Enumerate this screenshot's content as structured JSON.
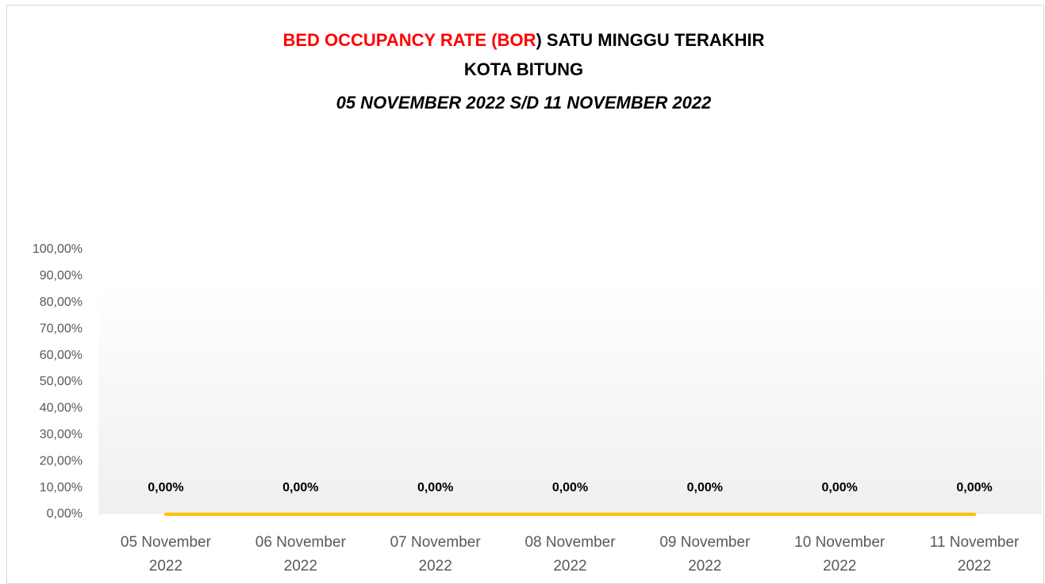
{
  "chart_data": {
    "type": "line",
    "title": {
      "highlight": "BED OCCUPANCY RATE (BOR",
      "rest": ") SATU MINGGU TERAKHIR",
      "highlight_color": "#ff0000"
    },
    "subtitle": "KOTA BITUNG",
    "period": "05 NOVEMBER 2022 S/D 11 NOVEMBER 2022",
    "categories": [
      "05 November 2022",
      "06 November 2022",
      "07 November 2022",
      "08 November 2022",
      "09 November 2022",
      "10 November 2022",
      "11 November 2022"
    ],
    "series": [
      {
        "name": "BOR",
        "color": "#ffc000",
        "values": [
          0,
          0,
          0,
          0,
          0,
          0,
          0
        ],
        "value_labels": [
          "0,00%",
          "0,00%",
          "0,00%",
          "0,00%",
          "0,00%",
          "0,00%",
          "0,00%"
        ]
      }
    ],
    "ylim": [
      0,
      100
    ],
    "yticks": [
      {
        "value": 0,
        "label": "0,00%"
      },
      {
        "value": 10,
        "label": "10,00%"
      },
      {
        "value": 20,
        "label": "20,00%"
      },
      {
        "value": 30,
        "label": "30,00%"
      },
      {
        "value": 40,
        "label": "40,00%"
      },
      {
        "value": 50,
        "label": "50,00%"
      },
      {
        "value": 60,
        "label": "60,00%"
      },
      {
        "value": 70,
        "label": "70,00%"
      },
      {
        "value": 80,
        "label": "80,00%"
      },
      {
        "value": 90,
        "label": "90,00%"
      },
      {
        "value": 100,
        "label": "100,00%"
      }
    ]
  }
}
